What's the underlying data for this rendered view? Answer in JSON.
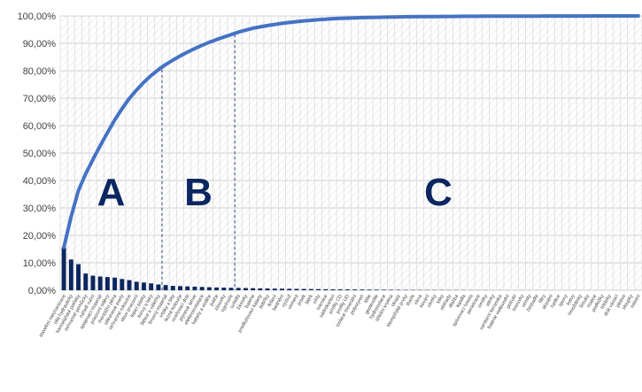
{
  "chart_data": {
    "type": "bar",
    "title": "",
    "xlabel": "",
    "ylabel": "",
    "ylim": [
      0,
      100
    ],
    "y_tick_labels": [
      "0,00%",
      "10,00%",
      "20,00%",
      "30,00%",
      "40,00%",
      "50,00%",
      "60,00%",
      "70,00%",
      "80,00%",
      "90,00%",
      "100,00%"
    ],
    "grid": true,
    "legend": "none",
    "categories": [
      "stavební mechanizace",
      "olej hydraulický",
      "kancelářské potřeby",
      "ochranné pomůcky",
      "nářadí ruční",
      "spojovací materiál",
      "pracovní oděvy",
      "montážní pěna",
      "silikonové tmely",
      "ochranné rukavice",
      "obuv pracovní",
      "lepicí pásky",
      "barvy a laky",
      "štětce a válečky",
      "brusný materiál",
      "vrtáky a bity",
      "řezné kotouče",
      "svařovací drát",
      "plynové lahve",
      "elektroinstalace",
      "kabely a vodiče",
      "jističe",
      "zásuvky",
      "vypínače",
      "svítidla",
      "žárovky",
      "baterie",
      "prodlužovací kabely",
      "žebříky",
      "lešení",
      "bednění",
      "výztuž",
      "cement",
      "písek",
      "štěrk",
      "cihly",
      "tvárnice",
      "sádrokarton",
      "profily CD",
      "profily UD",
      "izolace minerální",
      "polystyren",
      "fólie",
      "geotextilie",
      "hydroizolace",
      "střešní krytina",
      "okapy",
      "klempířské prvky",
      "dveře",
      "okna",
      "kování",
      "zámky",
      "kliky",
      "obklady",
      "dlažba",
      "lepidla",
      "spárovací hmota",
      "penetrace",
      "omítky",
      "stěrky",
      "sanitární keramika",
      "baterie vodovodní",
      "potrubí",
      "tvarovky",
      "ventily",
      "čerpadla",
      "filtry",
      "těsnění",
      "hadice",
      "spony",
      "kotvy",
      "hmoždinky",
      "šrouby",
      "matice",
      "podložky",
      "hřebíky",
      "drát vázací",
      "pletivo",
      "sloupky",
      "ostatní"
    ],
    "series": [
      {
        "values": [
          15.6,
          11.2,
          9.5,
          6.1,
          5.3,
          5.0,
          4.8,
          4.6,
          4.1,
          3.7,
          3.1,
          2.8,
          2.5,
          2.1,
          1.9,
          1.6,
          1.5,
          1.4,
          1.3,
          1.2,
          1.1,
          1.0,
          0.95,
          0.9,
          0.85,
          0.8,
          0.75,
          0.7,
          0.65,
          0.6,
          0.57,
          0.54,
          0.5,
          0.47,
          0.44,
          0.41,
          0.38,
          0.35,
          0.33,
          0.31,
          0.29,
          0.27,
          0.25,
          0.23,
          0.21,
          0.19,
          0.17,
          0.15,
          0.14,
          0.13,
          0.12,
          0.11,
          0.1,
          0.09,
          0.08,
          0.07,
          0.06,
          0.05,
          0.05,
          0.04,
          0.04,
          0.03,
          0.03,
          0.03,
          0.02,
          0.02,
          0.02,
          0.02,
          0.01,
          0.01,
          0.01,
          0.01,
          0.01,
          0.01,
          0.01,
          0.01,
          0.01,
          0.01,
          0.01,
          0.01
        ]
      },
      {
        "type": "line",
        "values": [
          15.6,
          26.8,
          36.3,
          42.4,
          47.7,
          52.7,
          57.5,
          62.1,
          66.2,
          69.9,
          73.0,
          75.8,
          78.3,
          80.4,
          82.3,
          83.9,
          85.4,
          86.8,
          88.1,
          89.3,
          90.4,
          91.4,
          92.3,
          93.2,
          94.1,
          94.8,
          95.5,
          96.0,
          96.5,
          96.9,
          97.3,
          97.6,
          97.9,
          98.2,
          98.4,
          98.6,
          98.8,
          99.0,
          99.1,
          99.2,
          99.3,
          99.4,
          99.45,
          99.5,
          99.55,
          99.6,
          99.65,
          99.7,
          99.72,
          99.74,
          99.76,
          99.78,
          99.8,
          99.82,
          99.84,
          99.86,
          99.87,
          99.88,
          99.89,
          99.9,
          99.91,
          99.92,
          99.93,
          99.94,
          99.95,
          99.95,
          99.96,
          99.96,
          99.97,
          99.97,
          99.98,
          99.98,
          99.98,
          99.99,
          99.99,
          99.99,
          99.99,
          100,
          100,
          100
        ]
      }
    ],
    "zones": [
      {
        "label": "A",
        "end_index": 13
      },
      {
        "label": "B",
        "end_index": 23
      },
      {
        "label": "C",
        "end_index": 79
      }
    ],
    "colors": {
      "bar": "#0b2660",
      "line": "#4472c4",
      "zone_text": "#0b2660",
      "divider": "#1f3a7a",
      "grid": "#d0d0d0"
    }
  }
}
